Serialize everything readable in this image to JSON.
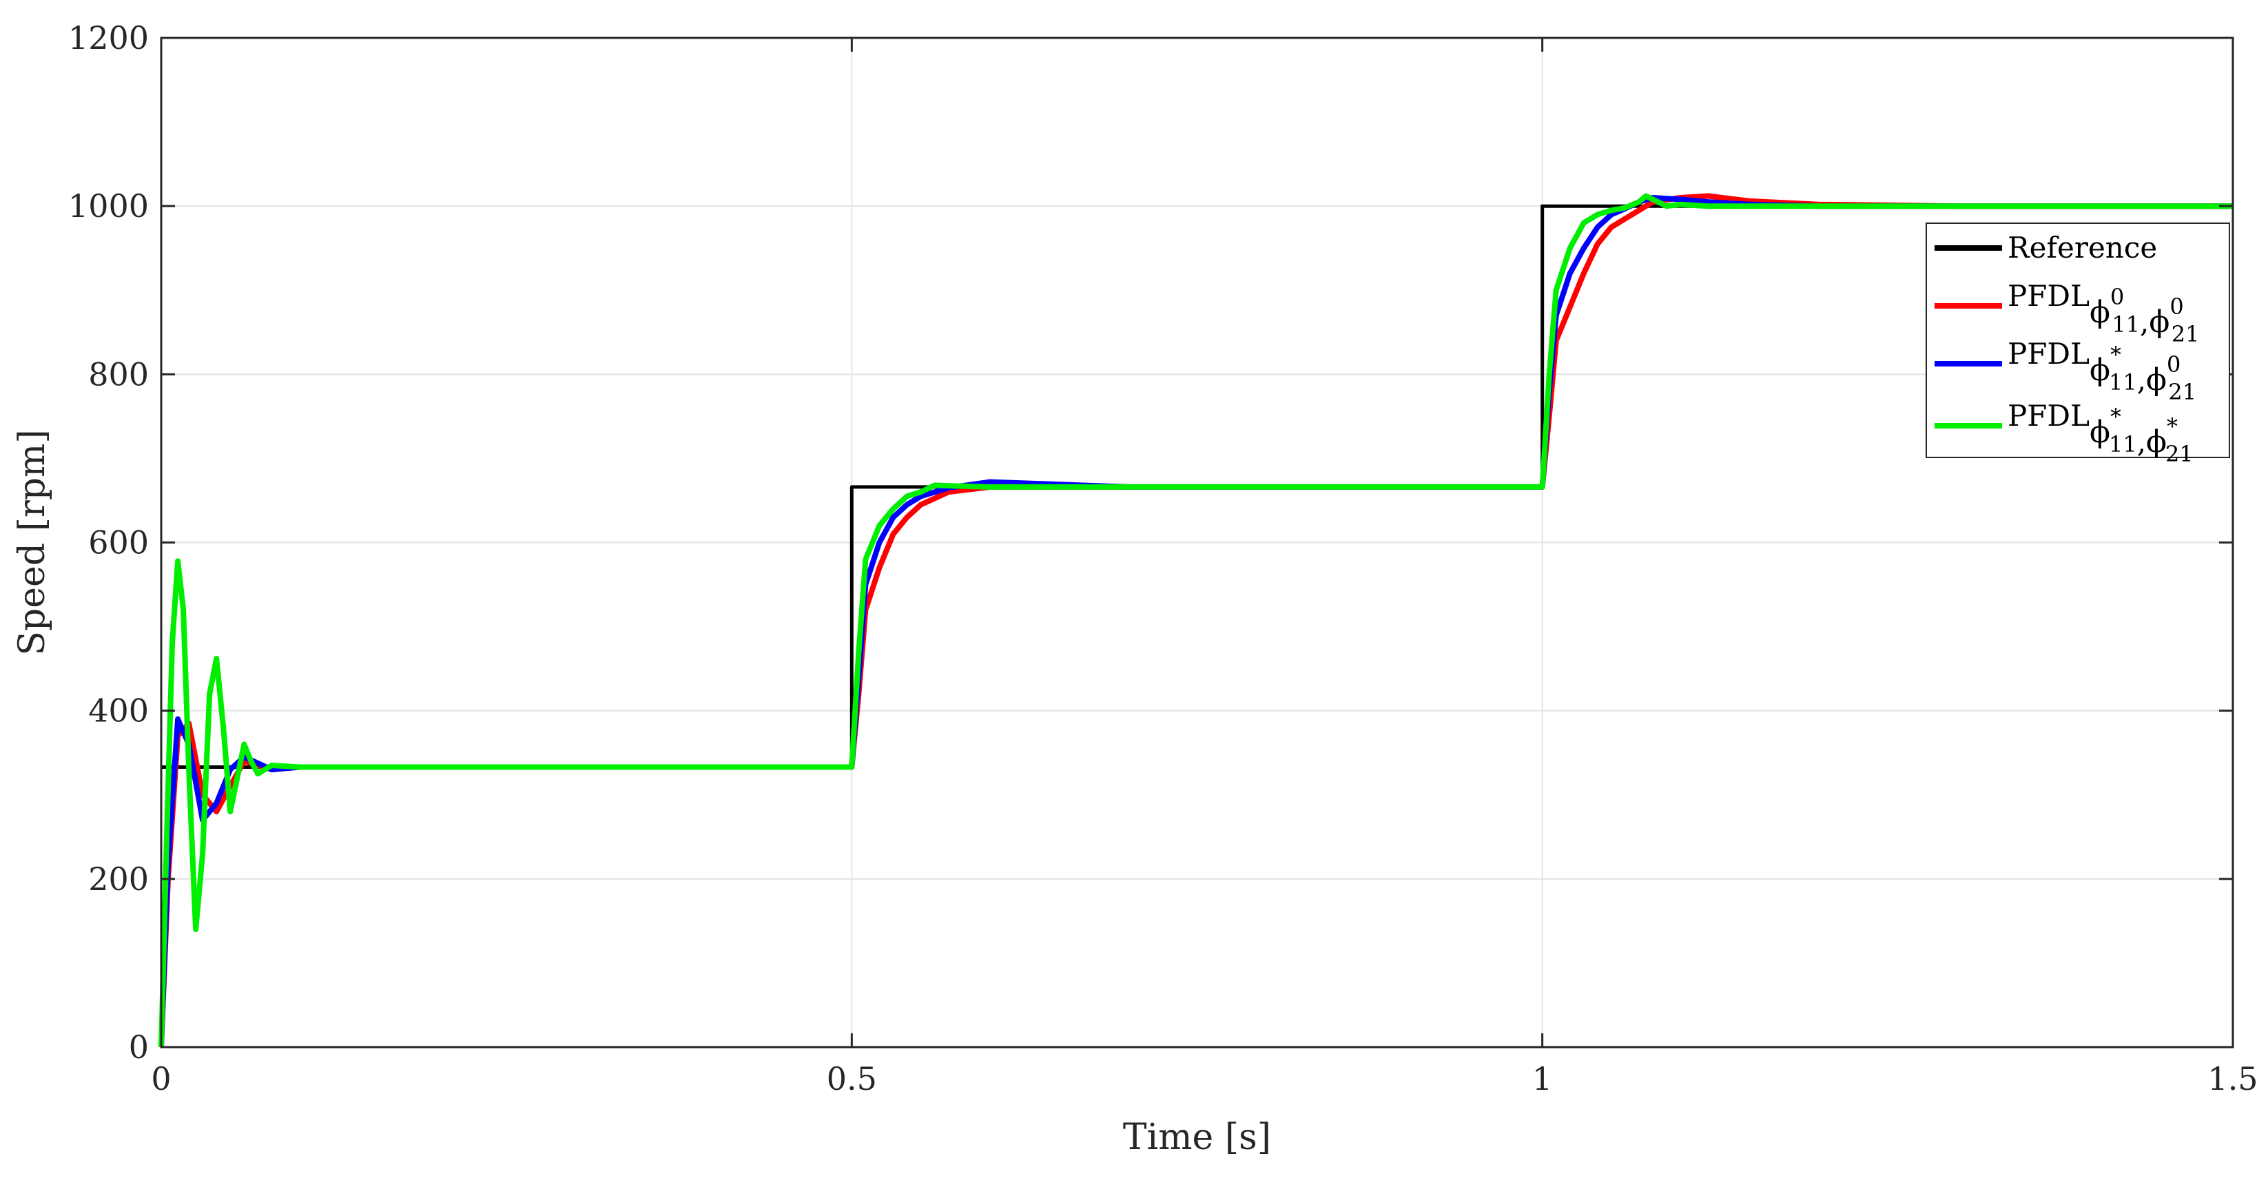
{
  "chart_data": {
    "type": "line",
    "title": "",
    "xlabel": "Time [s]",
    "ylabel": "Speed [rpm]",
    "xlim": [
      0,
      1.5
    ],
    "ylim": [
      0,
      1200
    ],
    "xticks": [
      0,
      0.5,
      1,
      1.5
    ],
    "xtick_labels": [
      "0",
      "0.5",
      "1",
      "1.5"
    ],
    "yticks": [
      0,
      200,
      400,
      600,
      800,
      1000,
      1200
    ],
    "ytick_labels": [
      "0",
      "200",
      "400",
      "600",
      "800",
      "1000",
      "1200"
    ],
    "grid": true,
    "legend_position": "top-right",
    "series": [
      {
        "name": "Reference",
        "legend_parts": [
          "Reference"
        ],
        "color": "#000000",
        "x": [
          0,
          0.5,
          0.5,
          1.0,
          1.0,
          1.5
        ],
        "y": [
          333,
          333,
          666,
          666,
          1000,
          1000
        ]
      },
      {
        "name": "PFDLφ11⁰,φ21⁰",
        "legend_parts": [
          "PFDL",
          "ϕ",
          "11",
          "0",
          ",",
          "ϕ",
          "21",
          "0"
        ],
        "color": "#ff0000",
        "x": [
          0,
          0.005,
          0.012,
          0.02,
          0.03,
          0.04,
          0.05,
          0.06,
          0.08,
          0.1,
          0.2,
          0.3,
          0.4,
          0.5,
          0.505,
          0.51,
          0.52,
          0.53,
          0.54,
          0.55,
          0.57,
          0.6,
          0.7,
          0.8,
          0.9,
          1.0,
          1.005,
          1.01,
          1.02,
          1.03,
          1.04,
          1.05,
          1.06,
          1.07,
          1.08,
          1.1,
          1.12,
          1.15,
          1.2,
          1.3,
          1.5
        ],
        "y": [
          0,
          200,
          370,
          385,
          300,
          280,
          310,
          340,
          330,
          333,
          333,
          333,
          333,
          333,
          420,
          520,
          570,
          610,
          630,
          645,
          660,
          666,
          666,
          666,
          666,
          666,
          750,
          840,
          880,
          920,
          955,
          975,
          985,
          995,
          1005,
          1010,
          1012,
          1006,
          1002,
          1000,
          1000
        ]
      },
      {
        "name": "PFDLφ11*,φ21⁰",
        "legend_parts": [
          "PFDL",
          "ϕ",
          "11",
          "*",
          ",",
          "ϕ",
          "21",
          "0"
        ],
        "color": "#0000ff",
        "x": [
          0,
          0.005,
          0.012,
          0.02,
          0.03,
          0.04,
          0.05,
          0.06,
          0.08,
          0.1,
          0.2,
          0.3,
          0.4,
          0.5,
          0.505,
          0.51,
          0.52,
          0.53,
          0.54,
          0.55,
          0.57,
          0.6,
          0.7,
          0.8,
          0.9,
          1.0,
          1.005,
          1.01,
          1.02,
          1.03,
          1.04,
          1.05,
          1.06,
          1.07,
          1.08,
          1.1,
          1.12,
          1.15,
          1.2,
          1.3,
          1.5
        ],
        "y": [
          0,
          220,
          390,
          360,
          270,
          290,
          330,
          345,
          330,
          333,
          333,
          333,
          333,
          333,
          440,
          550,
          600,
          630,
          645,
          655,
          665,
          672,
          666,
          666,
          666,
          666,
          780,
          870,
          920,
          950,
          975,
          990,
          997,
          1005,
          1010,
          1008,
          1005,
          1002,
          1000,
          1000,
          1000
        ]
      },
      {
        "name": "PFDLφ11*,φ21*",
        "legend_parts": [
          "PFDL",
          "ϕ",
          "11",
          "*",
          ",",
          "ϕ",
          "21",
          "*"
        ],
        "color": "#00ee00",
        "x": [
          0,
          0.004,
          0.008,
          0.012,
          0.016,
          0.02,
          0.025,
          0.03,
          0.035,
          0.04,
          0.045,
          0.05,
          0.055,
          0.06,
          0.065,
          0.07,
          0.08,
          0.1,
          0.2,
          0.3,
          0.4,
          0.5,
          0.505,
          0.51,
          0.52,
          0.53,
          0.54,
          0.55,
          0.56,
          0.6,
          0.7,
          0.8,
          0.9,
          1.0,
          1.005,
          1.01,
          1.02,
          1.03,
          1.04,
          1.05,
          1.06,
          1.07,
          1.075,
          1.08,
          1.09,
          1.1,
          1.12,
          1.15,
          1.2,
          1.3,
          1.5
        ],
        "y": [
          0,
          250,
          480,
          578,
          520,
          330,
          140,
          230,
          420,
          462,
          380,
          280,
          320,
          360,
          340,
          325,
          335,
          333,
          333,
          333,
          333,
          333,
          470,
          580,
          620,
          640,
          655,
          660,
          668,
          666,
          666,
          666,
          666,
          666,
          800,
          900,
          950,
          980,
          990,
          995,
          998,
          1005,
          1012,
          1008,
          1000,
          1002,
          1000,
          1000,
          1000,
          1000,
          1000
        ]
      }
    ]
  }
}
